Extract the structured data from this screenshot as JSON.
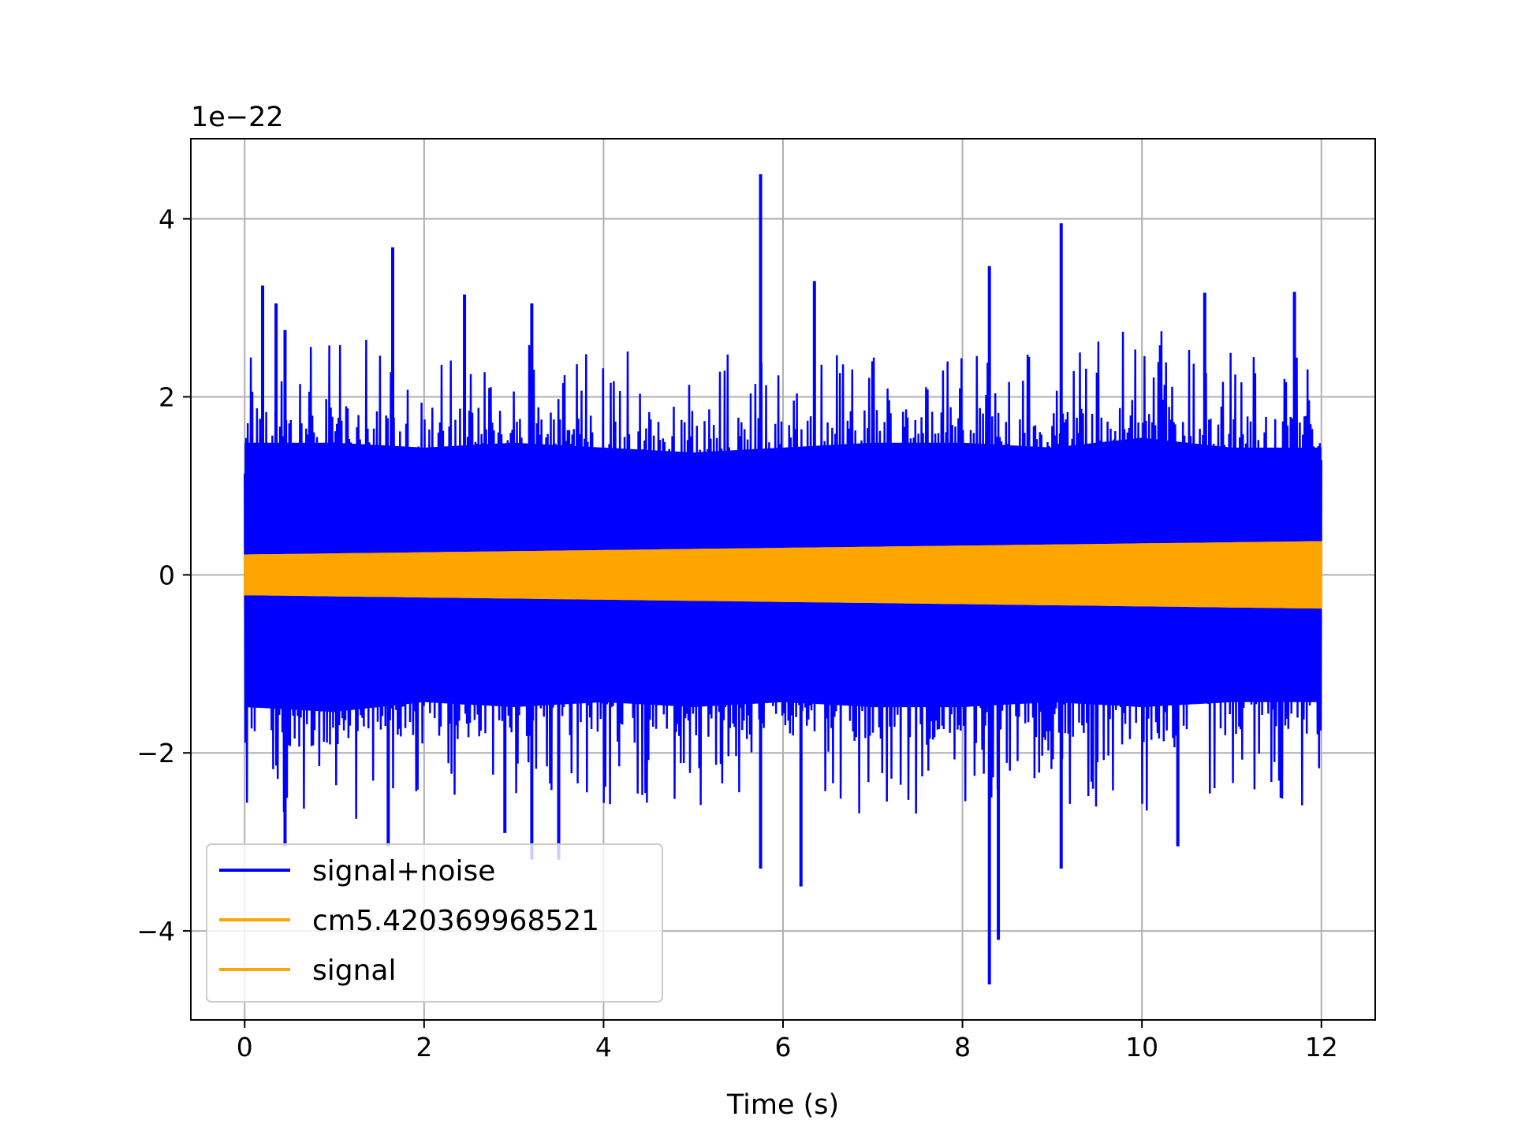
{
  "chart_data": {
    "type": "line",
    "title": "",
    "xlabel": "Time (s)",
    "ylabel": "",
    "y_offset_text": "1e−22",
    "y_scale_factor": 1e-22,
    "xlim": [
      -0.6,
      12.6
    ],
    "ylim": [
      -5.0,
      4.9
    ],
    "x_ticks": [
      0,
      2,
      4,
      6,
      8,
      10,
      12
    ],
    "x_tick_labels": [
      "0",
      "2",
      "4",
      "6",
      "8",
      "10",
      "12"
    ],
    "y_ticks": [
      -4,
      -2,
      0,
      2,
      4
    ],
    "y_tick_labels": [
      "−4",
      "−2",
      "0",
      "2",
      "4"
    ],
    "grid": true,
    "legend_position": "lower-left",
    "colors": {
      "signal_noise": "#0000ff",
      "signal": "#ffa500"
    },
    "series": [
      {
        "name": "signal+noise",
        "color": "#0000ff",
        "x_range": [
          0,
          12
        ],
        "envelope_upper": [
          2.7,
          2.7,
          2.6,
          2.7,
          2.6,
          2.5,
          2.6,
          2.7,
          2.7,
          2.6,
          2.8,
          2.6,
          2.6
        ],
        "envelope_lower": [
          -2.7,
          -2.8,
          -2.6,
          -2.7,
          -2.6,
          -2.7,
          -2.6,
          -2.7,
          -2.7,
          -2.6,
          -2.7,
          -2.6,
          -2.6
        ],
        "peaks": [
          {
            "x": 0.2,
            "y": 3.25
          },
          {
            "x": 0.45,
            "y": 2.75
          },
          {
            "x": 0.35,
            "y": 3.05
          },
          {
            "x": 1.65,
            "y": 3.68
          },
          {
            "x": 2.45,
            "y": 3.15
          },
          {
            "x": 3.2,
            "y": 3.05
          },
          {
            "x": 5.75,
            "y": 4.5
          },
          {
            "x": 6.35,
            "y": 3.3
          },
          {
            "x": 8.3,
            "y": 3.47
          },
          {
            "x": 9.1,
            "y": 3.95
          },
          {
            "x": 10.7,
            "y": 3.17
          },
          {
            "x": 11.7,
            "y": 3.18
          },
          {
            "x": 0.45,
            "y": -3.05
          },
          {
            "x": 1.6,
            "y": -3.05
          },
          {
            "x": 3.2,
            "y": -3.2
          },
          {
            "x": 3.5,
            "y": -3.2
          },
          {
            "x": 5.75,
            "y": -3.3
          },
          {
            "x": 6.2,
            "y": -3.5
          },
          {
            "x": 8.3,
            "y": -4.6
          },
          {
            "x": 8.4,
            "y": -4.1
          },
          {
            "x": 9.1,
            "y": -3.3
          },
          {
            "x": 10.4,
            "y": -3.05
          },
          {
            "x": 2.9,
            "y": -2.9
          }
        ]
      },
      {
        "name": "cm5.420369968521",
        "color": "#ffa500",
        "x_range": [
          0,
          12
        ],
        "amplitude_start": 0.22,
        "amplitude_end": 0.37
      },
      {
        "name": "signal",
        "color": "#ffa500",
        "x_range": [
          0,
          12
        ],
        "amplitude_start": 0.22,
        "amplitude_end": 0.37
      }
    ]
  }
}
